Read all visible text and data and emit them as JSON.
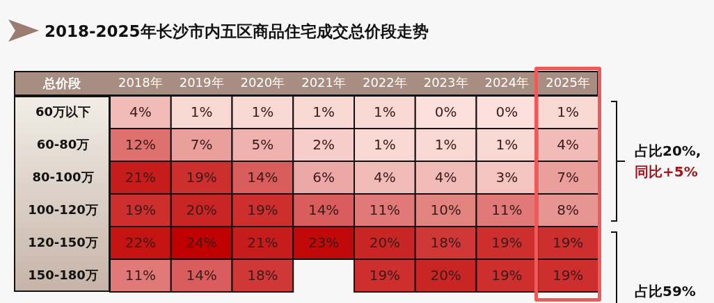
{
  "chart_data": {
    "type": "heatmap",
    "title": "2018-2025年长沙市内五区商品住宅成交总价段走势",
    "xlabel": "总价段",
    "categories": [
      "2018年",
      "2019年",
      "2020年",
      "2021年",
      "2022年",
      "2023年",
      "2024年",
      "2025年"
    ],
    "y_categories": [
      "60万以下",
      "60-80万",
      "80-100万",
      "100-120万",
      "120-150万",
      "150-180万"
    ],
    "cells": [
      [
        4,
        1,
        1,
        1,
        1,
        0,
        0,
        1
      ],
      [
        12,
        7,
        5,
        2,
        1,
        1,
        1,
        4
      ],
      [
        21,
        19,
        14,
        6,
        4,
        4,
        3,
        7
      ],
      [
        19,
        20,
        19,
        14,
        11,
        10,
        11,
        8
      ],
      [
        22,
        24,
        21,
        23,
        20,
        18,
        19,
        19
      ],
      [
        11,
        14,
        18,
        null,
        19,
        20,
        19,
        19
      ]
    ],
    "cell_labels": [
      [
        "4%",
        "1%",
        "1%",
        "1%",
        "1%",
        "0%",
        "0%",
        "1%"
      ],
      [
        "12%",
        "7%",
        "5%",
        "2%",
        "1%",
        "1%",
        "1%",
        "4%"
      ],
      [
        "21%",
        "19%",
        "14%",
        "6%",
        "4%",
        "4%",
        "3%",
        "7%"
      ],
      [
        "19%",
        "20%",
        "19%",
        "14%",
        "11%",
        "10%",
        "11%",
        "8%"
      ],
      [
        "22%",
        "24%",
        "21%",
        "23%",
        "20%",
        "18%",
        "19%",
        "19%"
      ],
      [
        "11%",
        "14%",
        "18%",
        null,
        "19%",
        "20%",
        "19%",
        "19%"
      ]
    ],
    "annotations": [
      "占比20%,",
      "同比+5%",
      "占比59%"
    ]
  }
}
